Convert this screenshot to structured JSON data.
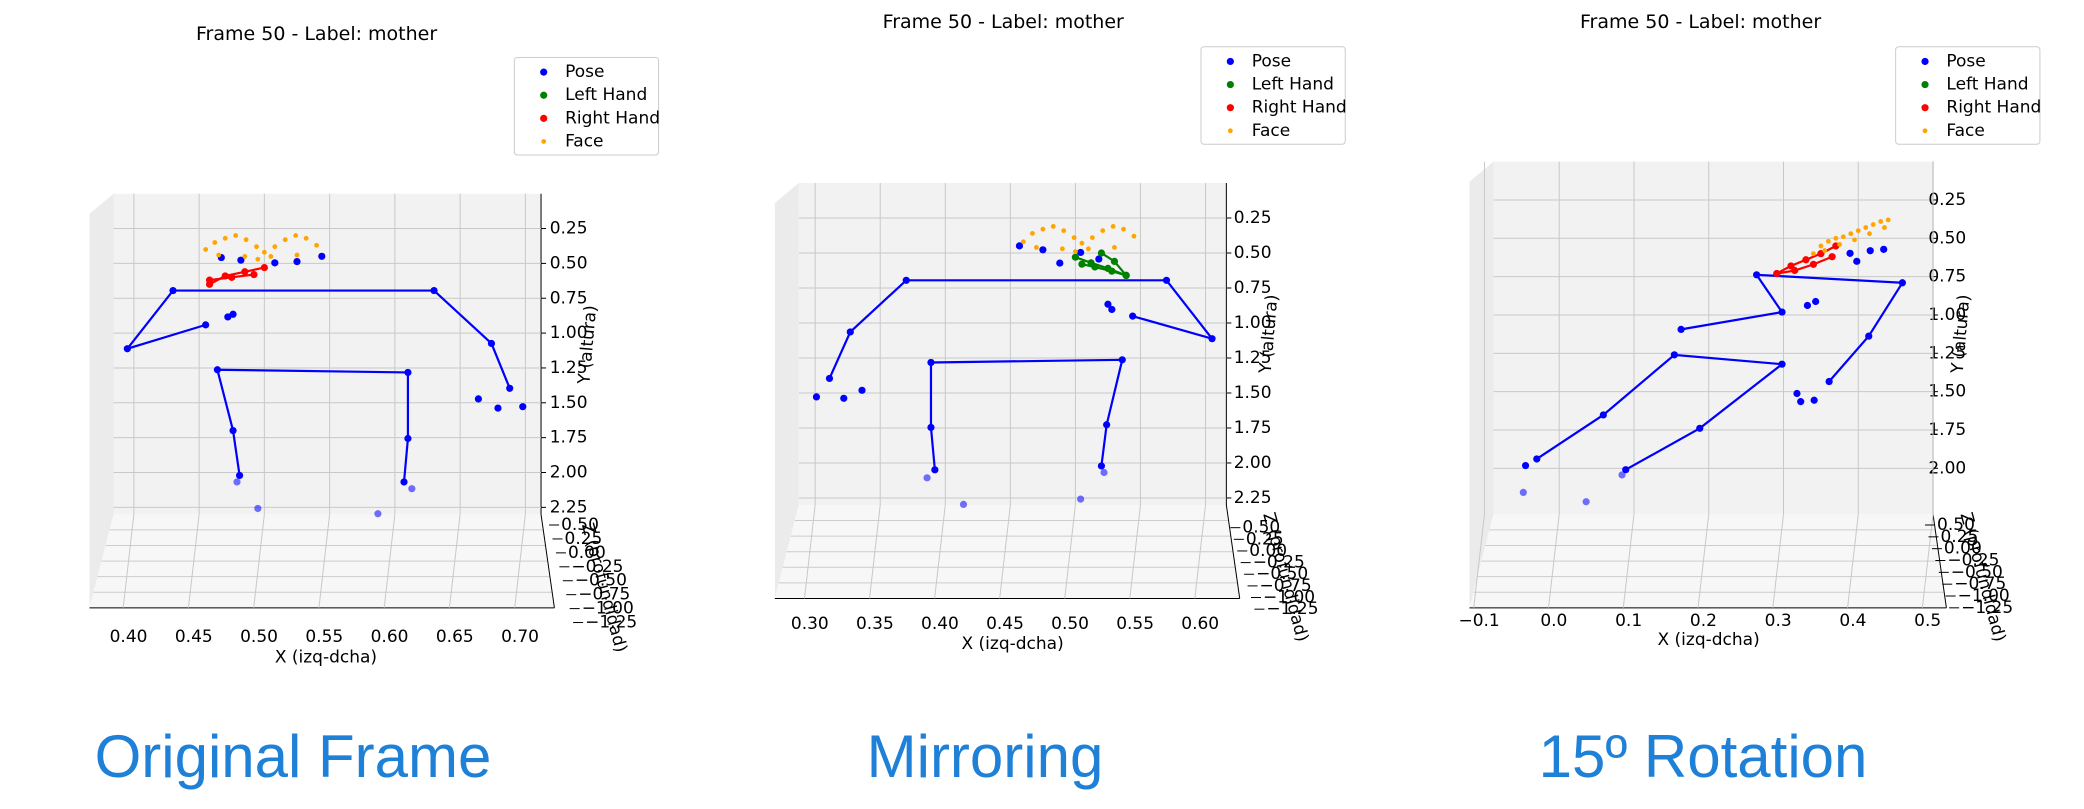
{
  "chart_data": [
    {
      "type": "scatter3d",
      "title": "Frame 50 - Label: mother",
      "x_label": "X (izq-dcha)",
      "y_label": "Y (altura)",
      "z_label": "Z (profundidad)",
      "xlim": [
        0.366,
        0.712
      ],
      "ylim": [
        2.3,
        0
      ],
      "zlim": [
        0.5,
        -1.25
      ],
      "grid": true,
      "legend": "upper right",
      "xticks": [
        {
          "value": 0.4,
          "label": "0.40"
        },
        0.45,
        {
          "value": 0.5,
          "label": "0.50"
        },
        0.55,
        {
          "value": 0.6,
          "label": "0.60"
        },
        0.65,
        {
          "value": 0.7,
          "label": "0.70"
        }
      ],
      "yticks": [
        0.25,
        {
          "value": 0.5,
          "label": "0.50"
        },
        0.75,
        {
          "value": 1,
          "label": "1.00"
        },
        1.25,
        {
          "value": 1.5,
          "label": "1.50"
        },
        1.75,
        {
          "value": 2,
          "label": "2.00"
        },
        2.25
      ],
      "zticks": [
        {
          "value": 0.5,
          "label": "0.50"
        },
        0.25,
        {
          "value": 0,
          "label": "0.00"
        },
        {
          "value": -0.25,
          "label": "−0.25"
        },
        {
          "value": -0.5,
          "label": "−0.50"
        },
        {
          "value": -0.75,
          "label": "−0.75"
        },
        {
          "value": -1,
          "label": "−1.00"
        },
        {
          "value": -1.25,
          "label": "−1.25"
        }
      ],
      "series": [
        {
          "name": "Pose",
          "color": "#0000ff",
          "x": [
            0.495,
            0.587,
            0.479,
            0.613,
            0.664,
            0.679,
            0.698,
            0.472,
            0.476,
            0.467,
            0.482,
            0.508,
            0.525,
            0.544
          ],
          "y": [
            2.258,
            2.296,
            2.068,
            2.116,
            1.472,
            1.538,
            1.528,
            0.884,
            0.865,
            0.458,
            0.477,
            0.496,
            0.487,
            0.449
          ],
          "skeleton": [
            {
              "x": [
                0.455,
                0.395,
                0.43,
                0.63,
                0.674,
                0.688
              ],
              "y": [
                0.941,
                1.112,
                0.695,
                0.695,
                1.074,
                1.396
              ]
            },
            {
              "x": [
                0.481,
                0.476,
                0.464,
                0.61,
                0.61,
                0.607
              ],
              "y": [
                2.021,
                1.699,
                1.263,
                1.282,
                1.756,
                2.068
              ]
            }
          ]
        },
        {
          "name": "Left Hand",
          "color": "#008000",
          "x": [],
          "y": []
        },
        {
          "name": "Right Hand",
          "color": "#ff0000",
          "x": [],
          "y": [],
          "skeleton": [
            {
              "x": [
                0.458,
                0.47,
                0.485,
                0.5
              ],
              "y": [
                0.65,
                0.59,
                0.56,
                0.53
              ]
            },
            {
              "x": [
                0.458,
                0.475,
                0.492
              ],
              "y": [
                0.62,
                0.6,
                0.58
              ]
            }
          ]
        },
        {
          "name": "Face",
          "color": "#ffa500",
          "x": [
            0.455,
            0.462,
            0.47,
            0.478,
            0.486,
            0.494,
            0.5,
            0.508,
            0.516,
            0.524,
            0.532,
            0.54,
            0.465,
            0.485,
            0.505,
            0.525,
            0.495
          ],
          "y": [
            0.4,
            0.35,
            0.32,
            0.3,
            0.33,
            0.38,
            0.42,
            0.38,
            0.33,
            0.3,
            0.32,
            0.37,
            0.44,
            0.45,
            0.45,
            0.44,
            0.47
          ]
        }
      ]
    },
    {
      "type": "scatter3d",
      "title": "Frame 50 - Label: mother",
      "x_label": "X (izq-dcha)",
      "y_label": "Y (altura)",
      "z_label": "Z (profundidad)",
      "xlim": [
        0.269,
        0.616
      ],
      "ylim": [
        2.3,
        0
      ],
      "zlim": [
        0.5,
        -1.25
      ],
      "grid": true,
      "legend": "upper right",
      "xticks": [
        {
          "value": 0.3,
          "label": "0.30"
        },
        0.35,
        {
          "value": 0.4,
          "label": "0.40"
        },
        0.45,
        {
          "value": 0.5,
          "label": "0.50"
        },
        0.55,
        {
          "value": 0.6,
          "label": "0.60"
        }
      ],
      "yticks": [
        0.25,
        {
          "value": 0.5,
          "label": "0.50"
        },
        0.75,
        {
          "value": 1,
          "label": "1.00"
        },
        1.25,
        {
          "value": 1.5,
          "label": "1.50"
        },
        1.75,
        {
          "value": 2,
          "label": "2.00"
        },
        2.25
      ],
      "zticks": [
        {
          "value": 0.5,
          "label": "0.50"
        },
        0.25,
        {
          "value": 0,
          "label": "0.00"
        },
        {
          "value": -0.25,
          "label": "−0.25"
        },
        {
          "value": -0.5,
          "label": "−0.50"
        },
        {
          "value": -0.75,
          "label": "−0.75"
        },
        {
          "value": -1,
          "label": "−1.00"
        },
        {
          "value": -1.25,
          "label": "−1.25"
        }
      ],
      "series": [
        {
          "name": "Pose",
          "color": "#0000ff",
          "x": [
            0.301,
            0.322,
            0.336,
            0.386,
            0.414,
            0.504,
            0.522,
            0.525,
            0.528,
            0.457,
            0.475,
            0.488,
            0.504,
            0.518
          ],
          "y": [
            1.528,
            1.538,
            1.481,
            2.106,
            2.296,
            2.258,
            2.068,
            0.866,
            0.903,
            0.449,
            0.477,
            0.572,
            0.496,
            0.543
          ],
          "skeleton": [
            {
              "x": [
                0.311,
                0.327,
                0.37,
                0.57,
                0.605,
                0.544
              ],
              "y": [
                1.396,
                1.064,
                0.695,
                0.695,
                1.112,
                0.951
              ]
            },
            {
              "x": [
                0.392,
                0.389,
                0.389,
                0.536,
                0.524,
                0.52
              ],
              "y": [
                2.049,
                1.746,
                1.282,
                1.263,
                1.727,
                2.021
              ]
            }
          ]
        },
        {
          "name": "Left Hand",
          "color": "#008000",
          "x": [],
          "y": [],
          "skeleton": [
            {
              "x": [
                0.539,
                0.525,
                0.512,
                0.5
              ],
              "y": [
                0.66,
                0.61,
                0.57,
                0.53
              ]
            },
            {
              "x": [
                0.539,
                0.528,
                0.515,
                0.505
              ],
              "y": [
                0.66,
                0.63,
                0.6,
                0.58
              ]
            },
            {
              "x": [
                0.539,
                0.53,
                0.52
              ],
              "y": [
                0.66,
                0.56,
                0.5
              ]
            }
          ]
        },
        {
          "name": "Right Hand",
          "color": "#ff0000",
          "x": [],
          "y": []
        },
        {
          "name": "Face",
          "color": "#ffa500",
          "x": [
            0.46,
            0.467,
            0.475,
            0.483,
            0.491,
            0.499,
            0.505,
            0.513,
            0.521,
            0.529,
            0.537,
            0.545,
            0.47,
            0.49,
            0.51,
            0.53,
            0.5
          ],
          "y": [
            0.42,
            0.36,
            0.33,
            0.31,
            0.34,
            0.39,
            0.43,
            0.39,
            0.34,
            0.31,
            0.33,
            0.38,
            0.46,
            0.47,
            0.47,
            0.46,
            0.49
          ]
        }
      ]
    },
    {
      "type": "scatter3d",
      "title": "Frame 50 - Label: mother",
      "x_label": "X (izq-dcha)",
      "y_label": "Y (altura)",
      "z_label": "Z (profundidad)",
      "xlim": [
        -0.12,
        0.5
      ],
      "ylim": [
        2.3,
        0
      ],
      "zlim": [
        0.5,
        -1.25
      ],
      "grid": true,
      "legend": "upper right",
      "xticks": [
        {
          "value": -0.1,
          "label": "−0.1"
        },
        {
          "value": 0,
          "label": "0.0"
        },
        0.1,
        0.2,
        0.3,
        0.4,
        0.5
      ],
      "yticks": [
        0.25,
        {
          "value": 0.5,
          "label": "0.50"
        },
        0.75,
        {
          "value": 1,
          "label": "1.00"
        },
        1.25,
        {
          "value": 1.5,
          "label": "1.50"
        },
        1.75,
        {
          "value": 2,
          "label": "2.00"
        }
      ],
      "zticks": [
        {
          "value": 0.5,
          "label": "0.50"
        },
        0.25,
        {
          "value": 0,
          "label": "0.00"
        },
        {
          "value": -0.25,
          "label": "−0.25"
        },
        {
          "value": -0.5,
          "label": "−0.50"
        },
        {
          "value": -0.75,
          "label": "−0.75"
        },
        {
          "value": -1,
          "label": "−1.00"
        },
        {
          "value": -1.25,
          "label": "−1.25"
        }
      ],
      "series": [
        {
          "name": "Pose",
          "color": "#0000ff",
          "x": [
            -0.048,
            0.036,
            -0.045,
            0.084,
            0.318,
            0.323,
            0.341,
            0.332,
            0.343,
            0.389,
            0.416,
            0.434,
            0.398
          ],
          "y": [
            2.157,
            2.218,
            1.982,
            2.043,
            1.512,
            1.565,
            1.556,
            0.938,
            0.912,
            0.598,
            0.581,
            0.572,
            0.65
          ],
          "skeleton": [
            {
              "x": [
                0.163,
                0.298,
                0.264,
                0.459,
                0.414,
                0.361
              ],
              "y": [
                1.094,
                0.981,
                0.738,
                0.79,
                1.138,
                1.434
              ]
            },
            {
              "x": [
                -0.03,
                0.059,
                0.154,
                0.298,
                0.188,
                0.089
              ],
              "y": [
                1.939,
                1.652,
                1.26,
                1.321,
                1.739,
                2.009
              ]
            }
          ]
        },
        {
          "name": "Left Hand",
          "color": "#008000",
          "x": [],
          "y": []
        },
        {
          "name": "Right Hand",
          "color": "#ff0000",
          "x": [],
          "y": [],
          "skeleton": [
            {
              "x": [
                0.291,
                0.31,
                0.33,
                0.35,
                0.37
              ],
              "y": [
                0.73,
                0.68,
                0.64,
                0.6,
                0.55
              ]
            },
            {
              "x": [
                0.291,
                0.315,
                0.34,
                0.365
              ],
              "y": [
                0.73,
                0.71,
                0.67,
                0.62
              ]
            }
          ]
        },
        {
          "name": "Face",
          "color": "#ffa500",
          "x": [
            0.34,
            0.35,
            0.36,
            0.37,
            0.38,
            0.39,
            0.4,
            0.41,
            0.42,
            0.43,
            0.44,
            0.355,
            0.375,
            0.395,
            0.415,
            0.435
          ],
          "y": [
            0.6,
            0.55,
            0.52,
            0.5,
            0.49,
            0.47,
            0.45,
            0.43,
            0.41,
            0.39,
            0.38,
            0.58,
            0.54,
            0.51,
            0.47,
            0.43
          ]
        }
      ]
    }
  ],
  "captions": [
    "Original Frame",
    "Mirroring",
    "15º Rotation"
  ]
}
